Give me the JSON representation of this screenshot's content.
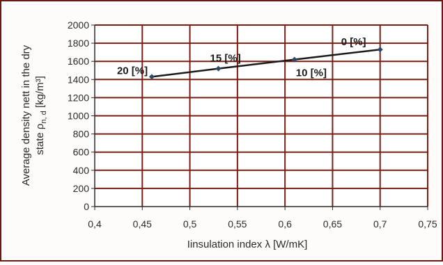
{
  "chart_data": {
    "type": "line",
    "xlabel": "Iinsulation index λ [W/mK]",
    "ylabel_line1": "Average density nett in the dry",
    "ylabel_line2": "state ρ",
    "ylabel_subscript": "n, d",
    "ylabel_unit": " [kg/m³]",
    "x_ticks": [
      "0,4",
      "0,45",
      "0,5",
      "0,55",
      "0,6",
      "0,65",
      "0,7",
      "0,75"
    ],
    "y_ticks": [
      "0",
      "200",
      "400",
      "600",
      "800",
      "1000",
      "1200",
      "1400",
      "1600",
      "1800",
      "2000"
    ],
    "xlim": [
      0.4,
      0.75
    ],
    "ylim": [
      0,
      2000
    ],
    "grid": true,
    "series": [
      {
        "x": [
          0.46,
          0.53,
          0.61,
          0.7
        ],
        "y": [
          1430,
          1520,
          1620,
          1730
        ]
      }
    ],
    "annotations": [
      {
        "text": "20 [%]",
        "x": 0.46,
        "y": 1430
      },
      {
        "text": "15 [%]",
        "x": 0.53,
        "y": 1520
      },
      {
        "text": "10 [%]",
        "x": 0.61,
        "y": 1620
      },
      {
        "text": "0 [%]",
        "x": 0.7,
        "y": 1730
      }
    ],
    "colors": {
      "plot_bg": "#ffffff",
      "grid": "#7a1e14",
      "axis": "#2a2a2a",
      "line": "#1a1a1a",
      "text": "#2a2a2a"
    }
  }
}
